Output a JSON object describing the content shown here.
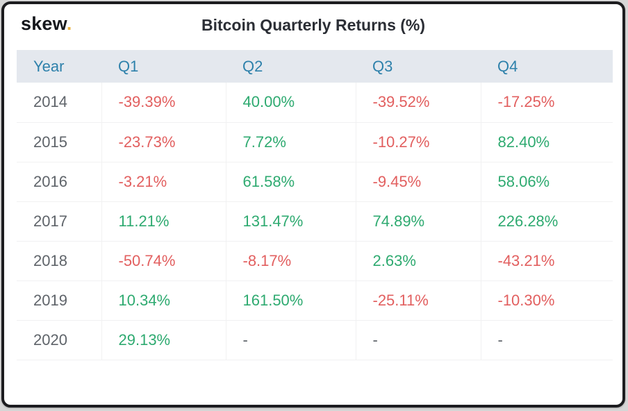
{
  "header": {
    "logo_text": "skew",
    "logo_dot": ".",
    "title": "Bitcoin Quarterly Returns (%)"
  },
  "chart_data": {
    "type": "table",
    "title": "Bitcoin Quarterly Returns (%)",
    "columns": [
      "Year",
      "Q1",
      "Q2",
      "Q3",
      "Q4"
    ],
    "rows": [
      [
        "2014",
        "-39.39%",
        "40.00%",
        "-39.52%",
        "-17.25%"
      ],
      [
        "2015",
        "-23.73%",
        "7.72%",
        "-10.27%",
        "82.40%"
      ],
      [
        "2016",
        "-3.21%",
        "61.58%",
        "-9.45%",
        "58.06%"
      ],
      [
        "2017",
        "11.21%",
        "131.47%",
        "74.89%",
        "226.28%"
      ],
      [
        "2018",
        "-50.74%",
        "-8.17%",
        "2.63%",
        "-43.21%"
      ],
      [
        "2019",
        "10.34%",
        "161.50%",
        "-25.11%",
        "-10.30%"
      ],
      [
        "2020",
        "29.13%",
        "-",
        "-",
        "-"
      ]
    ],
    "layout_hints": {
      "header_alignment": "left",
      "value_color_rule": "negative values red, positive values green, missing values shown as gray dash"
    }
  },
  "colors": {
    "positive": "#2eaa70",
    "negative": "#e25f5f",
    "header_text": "#2e81ab",
    "header_bg": "#e4e8ee",
    "muted": "#5f646a",
    "title_text": "#2b2e35",
    "logo_text": "#15171c",
    "logo_dot": "#eab342",
    "frame_border": "#1c1c1f",
    "page_bg": "#d6d6d6",
    "grid_line": "#f1f1f2"
  }
}
